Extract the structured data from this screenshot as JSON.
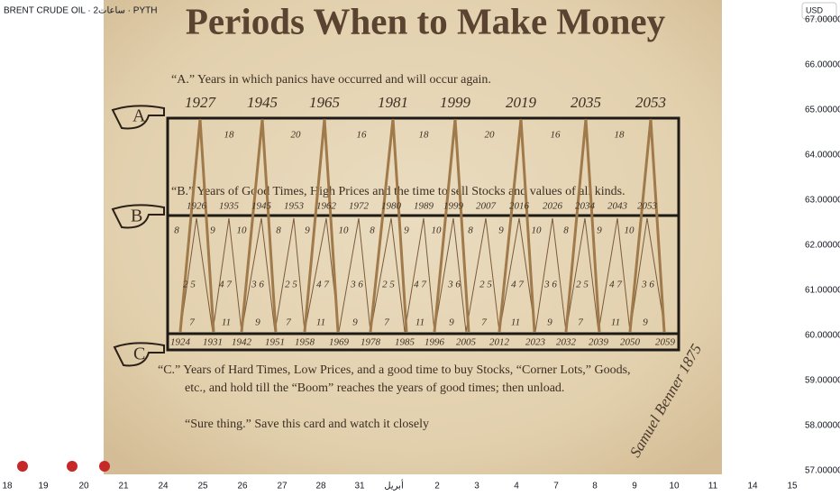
{
  "header": {
    "symbol": "BRENT CRUDE OIL · 2ساعات · PYTH",
    "currency": "USD"
  },
  "price_axis": {
    "labels": [
      "67.00000",
      "66.00000",
      "65.00000",
      "64.00000",
      "63.00000",
      "62.00000",
      "61.00000",
      "60.00000",
      "59.00000",
      "58.00000",
      "57.00000"
    ]
  },
  "time_axis": {
    "labels": [
      "18",
      "19",
      "20",
      "21",
      "24",
      "25",
      "26",
      "27",
      "28",
      "31",
      "أبريل",
      "2",
      "3",
      "4",
      "7",
      "8",
      "9",
      "10",
      "11",
      "14",
      "15"
    ]
  },
  "card": {
    "title": "Periods When to Make Money",
    "a": {
      "letter": "A",
      "text": "“A.” Years in which panics have occurred and will occur again.",
      "years": [
        "1927",
        "1945",
        "1965",
        "1981",
        "1999",
        "2019",
        "2035",
        "2053"
      ],
      "intervals": [
        "18",
        "20",
        "16",
        "18",
        "20",
        "16",
        "18"
      ]
    },
    "b": {
      "letter": "B",
      "text": "“B.” Years of Good Times, High Prices and the time to sell Stocks and values of all kinds.",
      "years": [
        "1926",
        "1935",
        "1945",
        "1953",
        "1962",
        "1972",
        "1980",
        "1989",
        "1999",
        "2007",
        "2016",
        "2026",
        "2034",
        "2043",
        "2053"
      ],
      "top_numbers": [
        "8",
        "9",
        "10",
        "8",
        "9",
        "10",
        "8",
        "9",
        "10",
        "8",
        "9",
        "10",
        "8",
        "9",
        "10"
      ],
      "middle_numbers": [
        "2 5",
        "4 7",
        "3 6",
        "2 5",
        "4 7",
        "3 6",
        "2 5",
        "4 7",
        "3 6",
        "2 5",
        "4 7",
        "3 6",
        "2 5",
        "4 7",
        "3 6"
      ],
      "bottom_numbers": [
        "7",
        "11",
        "9",
        "7",
        "11",
        "9",
        "7",
        "11",
        "9",
        "7",
        "11",
        "9",
        "7",
        "11",
        "9"
      ]
    },
    "c": {
      "letter": "C",
      "years": [
        "1924",
        "1931",
        "1942",
        "1951",
        "1958",
        "1969",
        "1978",
        "1985",
        "1996",
        "2005",
        "2012",
        "2023",
        "2032",
        "2039",
        "2050",
        "2059"
      ],
      "text_lines": [
        "“C.”   Years of Hard Times, Low Prices, and a good time to buy Stocks, “Corner Lots,” Goods,",
        "etc., and hold till  the “Boom” reaches the years of good times; then unload.",
        "“Sure thing.” Save this card and watch it closely"
      ]
    },
    "signature": "Samuel Benner 1875"
  }
}
